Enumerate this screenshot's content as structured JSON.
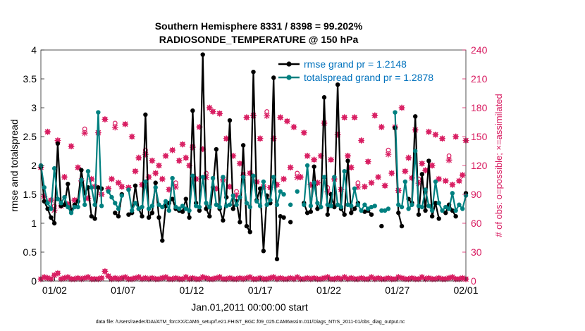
{
  "chart_data": {
    "type": "line",
    "title_line1": "Southern Hemisphere 8331 / 8398 = 99.202%",
    "title_line2": "RADIOSONDE_TEMPERATURE @ 150 hPa",
    "xlabel": "Jan.01,2011 00:00:00 start",
    "ylabel_left": "rmse and totalspread",
    "ylabel_right": "# of obs: o=possible; ×=assimilated",
    "footnote": "data file: /Users/raeder/DAI/ATM_forcXX/CAM6_setup/f.e21.FHIST_BGC.f09_025.CAM6assim.011/Diags_NTrS_2011-01/obs_diag_output.nc",
    "xlim": [
      0,
      31
    ],
    "ylim_left": [
      0,
      4
    ],
    "ylim_right": [
      0,
      240
    ],
    "x_ticks": [
      {
        "x": 1,
        "label": "01/02"
      },
      {
        "x": 6,
        "label": "01/07"
      },
      {
        "x": 11,
        "label": "01/12"
      },
      {
        "x": 16,
        "label": "01/17"
      },
      {
        "x": 21,
        "label": "01/22"
      },
      {
        "x": 26,
        "label": "01/27"
      },
      {
        "x": 31,
        "label": "02/01"
      }
    ],
    "y_ticks_left": [
      "0",
      "0.5",
      "1",
      "1.5",
      "2",
      "2.5",
      "3",
      "3.5",
      "4"
    ],
    "y_ticks_right": [
      "0",
      "30",
      "60",
      "90",
      "120",
      "150",
      "180",
      "210",
      "240"
    ],
    "colors": {
      "rmse": "#000000",
      "spread": "#008080",
      "obs": "#d81b60",
      "legend_text": "#0072bd"
    },
    "series": [
      {
        "name": "rmse grand pr = 1.2148",
        "values": [
          1.98,
          1.38,
          1.25,
          1.1,
          1.0,
          2.38,
          1.3,
          1.32,
          1.68,
          1.22,
          1.32,
          1.38,
          1.92,
          1.52,
          1.62,
          1.12,
          1.08,
          1.62,
          1.6,
          null,
          null,
          null,
          1.18,
          1.12,
          1.5,
          null,
          1.15,
          1.18,
          1.65,
          1.25,
          1.12,
          2.88,
          1.1,
          1.18,
          1.7,
          1.1,
          0.7,
          1.3,
          1.35,
          1.42,
          1.25,
          1.22,
          1.2,
          1.42,
          1.1,
          2.95,
          1.35,
          1.22,
          3.92,
          1.25,
          1.12,
          1.62,
          2.28,
          1.25,
          1.05,
          1.45,
          2.78,
          1.25,
          1.38,
          1.02,
          2.35,
          0.95,
          0.85,
          3.62,
          1.4,
          1.6,
          0.52,
          1.48,
          1.35,
          3.52,
          0.38,
          1.12,
          1.1,
          null,
          1.02,
          null,
          null,
          null,
          1.35,
          1.18,
          1.2,
          1.98,
          1.25,
          1.28,
          3.18,
          1.15,
          1.5,
          1.28,
          3.4,
          1.25,
          1.15,
          2.08,
          1.18,
          1.25,
          1.35,
          null,
          1.2,
          1.22,
          1.15,
          null,
          null,
          0.95,
          null,
          null,
          null,
          2.65,
          1.18,
          0.95,
          null,
          1.42,
          1.35,
          2.85,
          1.15,
          1.85,
          1.22,
          2.08,
          1.12,
          1.35,
          1.08,
          null,
          1.18,
          1.32,
          1.22,
          1.12,
          null,
          null,
          1.52
        ]
      },
      {
        "name": "totalspread grand pr = 1.2878",
        "values": [
          2.0,
          1.62,
          1.35,
          1.25,
          1.95,
          1.42,
          1.35,
          1.45,
          1.28,
          1.18,
          1.28,
          1.28,
          1.75,
          1.32,
          1.9,
          1.62,
          1.32,
          2.92,
          1.3,
          null,
          1.55,
          1.45,
          1.35,
          1.25,
          1.48,
          null,
          1.58,
          1.22,
          1.35,
          1.25,
          1.28,
          1.72,
          1.25,
          1.3,
          1.62,
          1.32,
          1.28,
          1.38,
          1.22,
          1.78,
          1.28,
          1.25,
          1.3,
          1.25,
          1.22,
          1.82,
          1.3,
          1.28,
          1.8,
          1.35,
          1.28,
          1.78,
          1.32,
          1.28,
          1.8,
          1.3,
          1.32,
          1.48,
          1.32,
          1.45,
          1.8,
          1.35,
          1.28,
          1.82,
          1.38,
          1.3,
          1.72,
          1.32,
          1.4,
          1.8,
          1.32,
          1.55,
          1.5,
          null,
          1.32,
          null,
          1.55,
          null,
          1.32,
          2.0,
          1.3,
          1.7,
          1.35,
          1.28,
          1.8,
          1.32,
          1.3,
          1.8,
          1.32,
          1.28,
          1.9,
          1.32,
          1.3,
          1.6,
          1.32,
          1.22,
          1.32,
          1.25,
          1.28,
          1.3,
          null,
          1.22,
          1.22,
          1.25,
          null,
          2.92,
          1.32,
          1.28,
          1.72,
          1.25,
          1.32,
          2.25,
          1.3,
          1.28,
          1.58,
          1.3,
          1.22,
          1.72,
          1.35,
          1.22,
          1.28,
          1.25,
          1.52,
          1.22,
          1.32,
          1.25,
          1.48
        ]
      }
    ],
    "obs_high_possible": [
      118,
      88,
      155,
      84,
      78,
      146,
      78,
      108,
      80,
      140,
      84,
      118,
      104,
      158,
      86,
      106,
      98,
      154,
      90,
      168,
      96,
      106,
      164,
      102,
      98,
      163,
      97,
      150,
      114,
      128,
      100,
      136,
      108,
      125,
      112,
      120,
      106,
      130,
      95,
      136,
      102,
      125,
      142,
      128,
      120,
      139,
      106,
      160,
      137,
      112,
      180,
      176,
      96,
      174,
      105,
      148,
      98,
      130,
      93,
      122,
      110,
      170,
      112,
      172,
      103,
      148,
      98,
      176,
      97,
      148,
      100,
      170,
      106,
      166,
      118,
      160,
      112,
      108,
      154,
      130,
      100,
      126,
      102,
      130,
      164,
      97,
      126,
      106,
      152,
      95,
      170,
      130,
      118,
      170,
      102,
      146,
      98,
      124,
      102,
      172,
      108,
      160,
      99,
      136,
      112,
      160,
      94,
      180,
      114,
      128,
      107,
      157,
      106,
      122,
      115,
      155,
      120,
      152,
      106,
      148,
      104,
      130,
      100,
      150,
      104,
      110,
      146
    ],
    "obs_low_possible": [
      2,
      4,
      3,
      2,
      6,
      8,
      2,
      3,
      4,
      2,
      2,
      3,
      2,
      3,
      4,
      2,
      2,
      2,
      3,
      10,
      5,
      2,
      3,
      2,
      3,
      4,
      2,
      2,
      3,
      4,
      2,
      3,
      2,
      3,
      2,
      2,
      3,
      4,
      2,
      2,
      3,
      2,
      2,
      4,
      2,
      3,
      2,
      2,
      4,
      3,
      2,
      2,
      3,
      4,
      2,
      2,
      3,
      2,
      2,
      3,
      2,
      3,
      4,
      2,
      2,
      3,
      2,
      2,
      3,
      4,
      2,
      3,
      2,
      2,
      3,
      2,
      4,
      2,
      2,
      3,
      2,
      3,
      2,
      2,
      3,
      4,
      2,
      2,
      3,
      2,
      4,
      2,
      3,
      2,
      2,
      3,
      2,
      2,
      4,
      2,
      3,
      2,
      2,
      3,
      2,
      2,
      4,
      3,
      2,
      2,
      3,
      2,
      2,
      4,
      2,
      3,
      2,
      2,
      3,
      2,
      2,
      3,
      4,
      2,
      2,
      3,
      2
    ]
  }
}
